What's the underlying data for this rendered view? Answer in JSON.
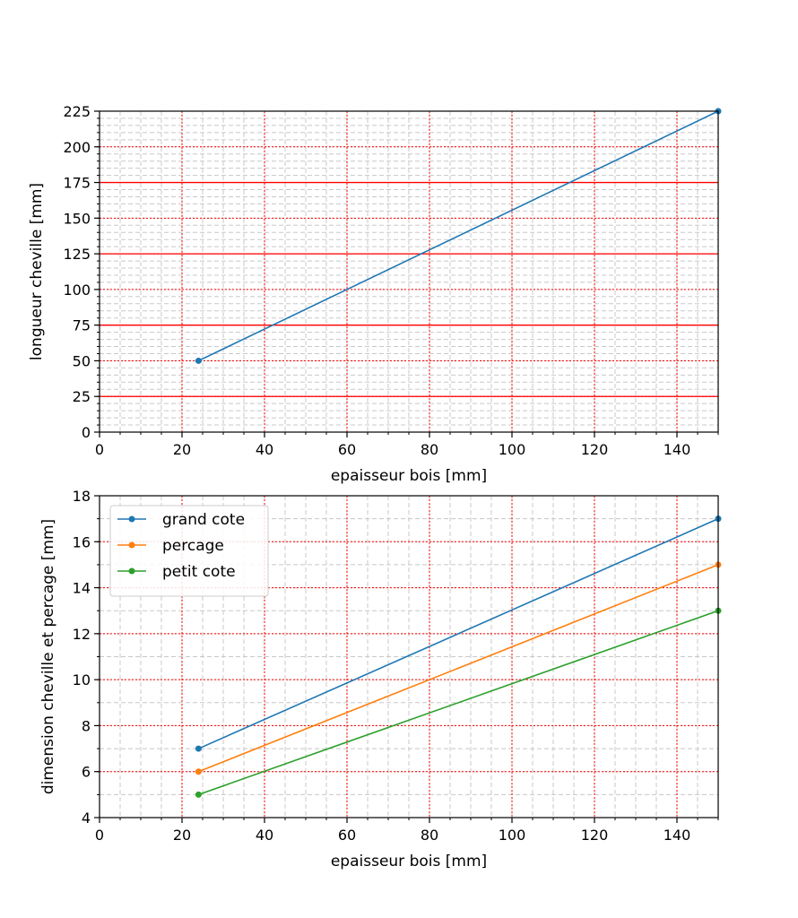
{
  "chart_data": [
    {
      "type": "line",
      "xlabel": "epaisseur bois [mm]",
      "ylabel": "longueur cheville [mm]",
      "xlim": [
        0,
        150
      ],
      "ylim": [
        0,
        225
      ],
      "xticks": [
        0,
        20,
        40,
        60,
        80,
        100,
        120,
        140
      ],
      "yticks": [
        0,
        25,
        50,
        75,
        100,
        125,
        150,
        175,
        200,
        225
      ],
      "x_minor_step": 5,
      "y_minor_step": 5,
      "grid": true,
      "hlines": [
        25,
        75,
        125,
        175
      ],
      "series": [
        {
          "color": "#1f77b4",
          "points": [
            [
              24,
              50
            ],
            [
              150,
              225
            ]
          ]
        }
      ]
    },
    {
      "type": "line",
      "xlabel": "epaisseur bois [mm]",
      "ylabel": "dimension cheville et percage [mm]",
      "xlim": [
        0,
        150
      ],
      "ylim": [
        4,
        18
      ],
      "xticks": [
        0,
        20,
        40,
        60,
        80,
        100,
        120,
        140
      ],
      "yticks": [
        4,
        6,
        8,
        10,
        12,
        14,
        16,
        18
      ],
      "x_minor_step": 5,
      "y_minor_step": 1,
      "grid": true,
      "legend": "top-left",
      "series": [
        {
          "name": "grand cote",
          "color": "#1f77b4",
          "points": [
            [
              24,
              7
            ],
            [
              150,
              17
            ]
          ]
        },
        {
          "name": "percage",
          "color": "#ff7f0e",
          "points": [
            [
              24,
              6
            ],
            [
              150,
              15
            ]
          ]
        },
        {
          "name": "petit cote",
          "color": "#2ca02c",
          "points": [
            [
              24,
              5
            ],
            [
              150,
              13
            ]
          ]
        }
      ]
    }
  ]
}
